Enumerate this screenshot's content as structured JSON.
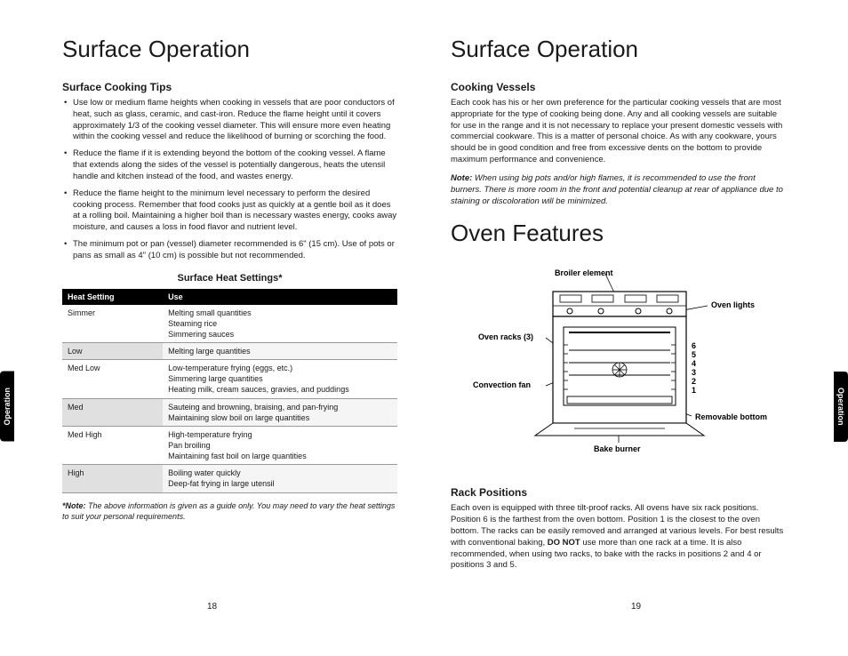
{
  "left": {
    "title": "Surface Operation",
    "subtitle": "Surface Cooking Tips",
    "tips": [
      "Use low or medium flame heights when cooking in vessels that are poor conductors of heat, such as glass, ceramic, and cast-iron. Reduce the flame height until it covers approximately 1/3 of the cooking vessel diameter. This will ensure more even heating within the cooking vessel and reduce the likelihood of burning or scorching the food.",
      "Reduce the flame if it is extending beyond the bottom of the cooking vessel. A flame that extends along the sides of the vessel is potentially dangerous, heats the utensil handle and kitchen instead of the food, and wastes energy.",
      "Reduce the flame height to the minimum level necessary to perform the desired cooking process. Remember that food cooks just as quickly at a gentle boil as it does at a rolling boil. Maintaining a higher boil than is necessary wastes energy, cooks away moisture, and causes a loss in food flavor and nutrient level.",
      "The minimum pot or pan (vessel) diameter recommended is 6\" (15 cm). Use of pots or pans as small as 4\" (10 cm) is possible but not recommended."
    ],
    "table_title": "Surface Heat Settings*",
    "table": {
      "headers": [
        "Heat Setting",
        "Use"
      ],
      "rows": [
        [
          "Simmer",
          "Melting small quantities\nSteaming rice\nSimmering sauces"
        ],
        [
          "Low",
          "Melting large quantities"
        ],
        [
          "Med Low",
          "Low-temperature frying (eggs, etc.)\nSimmering large quantities\nHeating milk, cream sauces, gravies, and puddings"
        ],
        [
          "Med",
          "Sauteing and browning, braising, and pan-frying\nMaintaining slow boil on large quantities"
        ],
        [
          "Med High",
          "High-temperature frying\nPan broiling\nMaintaining fast boil on large quantities"
        ],
        [
          "High",
          "Boiling water quickly\nDeep-fat frying in large utensil"
        ]
      ]
    },
    "table_note_bold": "*Note:",
    "table_note": " The above information is given as a guide only. You may need to vary the heat settings to suit your personal requirements.",
    "pagenum": "18",
    "sidetab": "Operation"
  },
  "right": {
    "title1": "Surface Operation",
    "sub1": "Cooking Vessels",
    "vessel_text": "Each cook has his or her own preference for the particular cooking vessels that are most appropriate for the type of cooking being done. Any and all cooking vessels are suitable for use in the range and it is not necessary to replace your present domestic vessels with commercial cookware. This is a matter of personal choice. As with any cookware, yours should be in good condition and free from excessive dents on the bottom to provide maximum performance and convenience.",
    "vessel_note_bold": "Note:",
    "vessel_note": " When using big pots and/or high flames, it is recommended to use the front burners. There is more room in the front and potential cleanup at rear of appliance due to staining or discoloration will be minimized.",
    "title2": "Oven Features",
    "diagram": {
      "broiler": "Broiler element",
      "racks": "Oven racks (3)",
      "fan": "Convection fan",
      "lights": "Oven lights",
      "positions": [
        "6",
        "5",
        "4",
        "3",
        "2",
        "1"
      ],
      "bottom": "Removable bottom",
      "bake": "Bake burner"
    },
    "sub2": "Rack Positions",
    "rack_text1": "Each oven is equipped with three tilt-proof racks. All ovens have six rack positions. Position 6 is the farthest from the oven bottom. Position 1 is the closest to the oven bottom. The racks can be easily removed and arranged at various levels. For best results with conventional baking, ",
    "rack_bold": "DO NOT",
    "rack_text2": " use more than one rack at a time. It is also recommended, when using two racks, to bake with the racks in positions 2 and 4 or positions 3 and 5.",
    "pagenum": "19",
    "sidetab": "Operation"
  }
}
